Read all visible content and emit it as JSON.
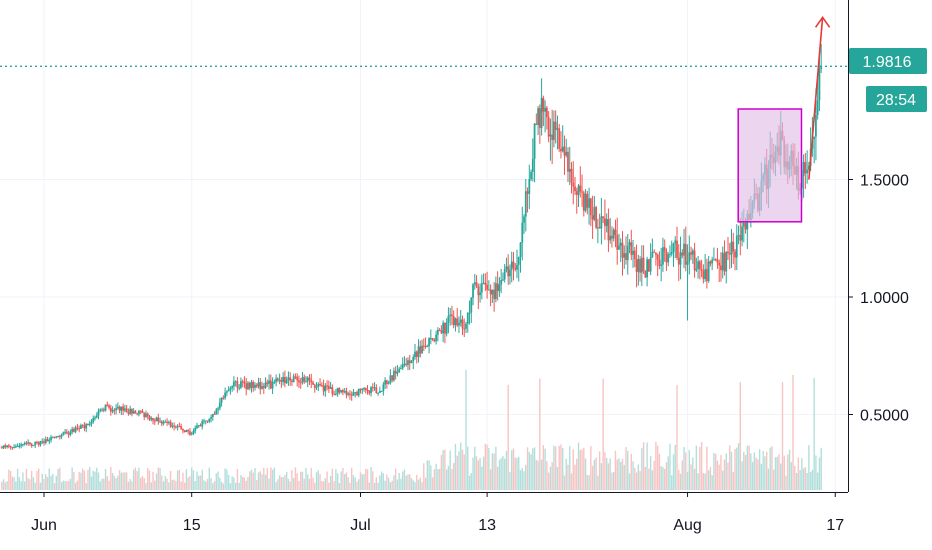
{
  "chart_data": {
    "type": "candlestick",
    "title": "",
    "xlabel": "",
    "ylabel": "",
    "ylim": [
      0.2,
      2.05
    ],
    "yticks": [
      "0.5000",
      "1.0000",
      "1.5000"
    ],
    "xticks": [
      "Jun",
      "15",
      "Jul",
      "13",
      "Aug",
      "17"
    ],
    "xtick_days": [
      0,
      14,
      30,
      42,
      61,
      75
    ],
    "x_range_days": [
      -4,
      80
    ],
    "last_price_label": "1.9816",
    "last_price": 1.9816,
    "countdown_label": "28:54",
    "colors": {
      "up": "#26a69a",
      "down": "#ef5350",
      "up_volume": "#b2dfdb",
      "down_volume": "#f8c4c3",
      "price_line": "#26a69a",
      "box_stroke": "#cc00cc",
      "box_fill": "#e1bee7",
      "arrow": "#e53935",
      "grid": "#f0f3fa",
      "axis": "#131722"
    },
    "anchors": [
      [
        -4,
        0.36
      ],
      [
        0,
        0.38
      ],
      [
        4,
        0.45
      ],
      [
        6,
        0.53
      ],
      [
        9,
        0.51
      ],
      [
        12,
        0.46
      ],
      [
        14,
        0.42
      ],
      [
        16,
        0.49
      ],
      [
        18,
        0.63
      ],
      [
        21,
        0.62
      ],
      [
        24,
        0.66
      ],
      [
        27,
        0.61
      ],
      [
        29,
        0.59
      ],
      [
        32,
        0.61
      ],
      [
        34,
        0.7
      ],
      [
        36,
        0.78
      ],
      [
        39,
        0.91
      ],
      [
        40,
        0.86
      ],
      [
        41,
        1.05
      ],
      [
        43,
        1.03
      ],
      [
        45,
        1.15
      ],
      [
        46,
        1.45
      ],
      [
        47,
        1.8
      ],
      [
        49,
        1.65
      ],
      [
        51,
        1.4
      ],
      [
        53,
        1.33
      ],
      [
        55,
        1.22
      ],
      [
        57,
        1.12
      ],
      [
        59,
        1.2
      ],
      [
        61,
        1.18
      ],
      [
        63,
        1.1
      ],
      [
        65,
        1.17
      ],
      [
        67,
        1.32
      ],
      [
        68,
        1.45
      ],
      [
        70,
        1.65
      ],
      [
        72,
        1.48
      ],
      [
        73,
        1.68
      ],
      [
        73.8,
        1.98
      ]
    ],
    "volume_peak_days": [
      40,
      44,
      47,
      53,
      60,
      66,
      70,
      71,
      73
    ]
  }
}
